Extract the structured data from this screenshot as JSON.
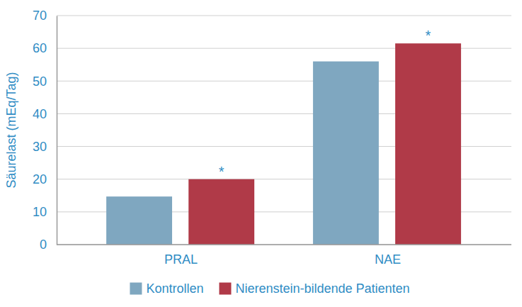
{
  "chart_data": {
    "type": "bar",
    "y_label": "Säurelast (mEq/Tag)",
    "categories": [
      "PRAL",
      "NAE"
    ],
    "series": [
      {
        "name": "Kontrollen",
        "color": "#7fa7c0",
        "values": [
          14.7,
          56
        ]
      },
      {
        "name": "Nierenstein-bildende Patienten",
        "color": "#b03a48",
        "values": [
          20,
          61.5
        ],
        "annotations": [
          "*",
          "*"
        ]
      }
    ],
    "ylim": [
      0,
      70
    ],
    "yticks": [
      0,
      10,
      20,
      30,
      40,
      50,
      60,
      70
    ],
    "grid": true,
    "legend": "bottom"
  }
}
